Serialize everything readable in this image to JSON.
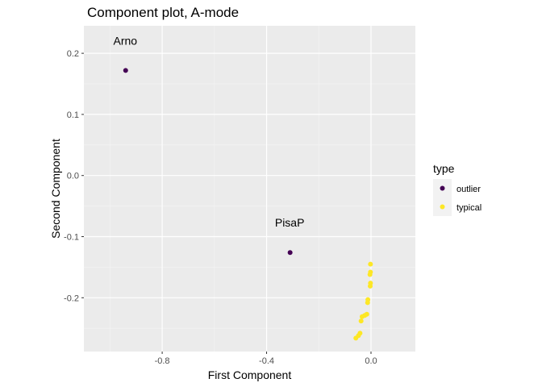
{
  "chart_data": {
    "type": "scatter",
    "title": "Component plot, A-mode",
    "xlabel": "First Component",
    "ylabel": "Second Component",
    "xlim": [
      -1.1,
      0.17
    ],
    "ylim": [
      -0.288,
      0.245
    ],
    "x_ticks": [
      {
        "value": -0.8,
        "label": "-0.8"
      },
      {
        "value": -0.4,
        "label": "-0.4"
      },
      {
        "value": 0.0,
        "label": "0.0"
      }
    ],
    "y_ticks": [
      {
        "value": 0.2,
        "label": "0.2"
      },
      {
        "value": 0.1,
        "label": "0.1"
      },
      {
        "value": 0.0,
        "label": "0.0"
      },
      {
        "value": -0.1,
        "label": "-0.1"
      },
      {
        "value": -0.2,
        "label": "-0.2"
      }
    ],
    "grid": true,
    "legend": {
      "title": "type",
      "position": "right",
      "entries": [
        {
          "label": "outlier",
          "color": "#440154"
        },
        {
          "label": "typical",
          "color": "#FDE725"
        }
      ]
    },
    "series": [
      {
        "name": "outlier",
        "color": "#440154",
        "points": [
          {
            "x": -0.94,
            "y": 0.172,
            "label": "Arno"
          },
          {
            "x": -0.31,
            "y": -0.126,
            "label": "PisaP"
          }
        ]
      },
      {
        "name": "typical",
        "color": "#FDE725",
        "points": [
          {
            "x": -0.002,
            "y": -0.145
          },
          {
            "x": -0.002,
            "y": -0.158
          },
          {
            "x": -0.004,
            "y": -0.162
          },
          {
            "x": -0.002,
            "y": -0.176
          },
          {
            "x": -0.003,
            "y": -0.181
          },
          {
            "x": -0.012,
            "y": -0.203
          },
          {
            "x": -0.013,
            "y": -0.208
          },
          {
            "x": -0.016,
            "y": -0.227
          },
          {
            "x": -0.024,
            "y": -0.229
          },
          {
            "x": -0.034,
            "y": -0.231
          },
          {
            "x": -0.038,
            "y": -0.238
          },
          {
            "x": -0.042,
            "y": -0.258
          },
          {
            "x": -0.048,
            "y": -0.262
          },
          {
            "x": -0.058,
            "y": -0.266
          }
        ]
      }
    ]
  }
}
